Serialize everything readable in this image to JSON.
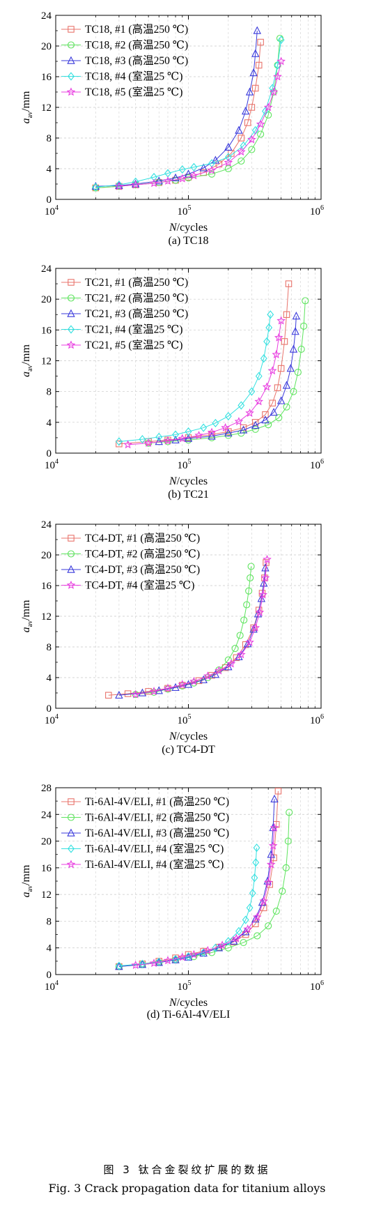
{
  "figure_caption_cn": "图 3  钛合金裂纹扩展的数据",
  "figure_caption_en": "Fig. 3   Crack propagation data for titanium alloys",
  "chart_data": [
    {
      "type": "line",
      "subtitle": "(a) TC18",
      "xlabel": "N/cycles",
      "ylabel": "a_av/mm",
      "x_scale": "log",
      "xlim": [
        10000,
        1000000
      ],
      "ylim": [
        0,
        24
      ],
      "yticks": [
        0,
        4,
        8,
        12,
        16,
        20,
        24
      ],
      "xticks": [
        "10^4",
        "10^5",
        "10^6"
      ],
      "grid": true,
      "legend_position": "top-left",
      "series": [
        {
          "name": "TC18, #1 (高温250 ℃)",
          "color": "#e8736b",
          "marker": "square",
          "x": [
            20000,
            30000,
            40000,
            60000,
            80000,
            100000,
            130000,
            170000,
            210000,
            250000,
            280000,
            300000,
            320000,
            340000,
            350000
          ],
          "y": [
            1.5,
            1.7,
            1.9,
            2.2,
            2.5,
            2.9,
            3.5,
            4.6,
            6.0,
            8.0,
            10.0,
            12.0,
            14.5,
            17.5,
            20.5
          ]
        },
        {
          "name": "TC18, #2 (高温250 ℃)",
          "color": "#5ee45e",
          "marker": "circle",
          "x": [
            20000,
            30000,
            40000,
            60000,
            80000,
            100000,
            150000,
            200000,
            250000,
            300000,
            350000,
            400000,
            440000,
            470000,
            490000
          ],
          "y": [
            1.5,
            1.7,
            1.9,
            2.2,
            2.5,
            2.8,
            3.3,
            4.0,
            5.0,
            6.5,
            8.5,
            11.0,
            14.0,
            17.5,
            21.0
          ]
        },
        {
          "name": "TC18, #3 (高温250 ℃)",
          "color": "#3a3adb",
          "marker": "triangle",
          "x": [
            20000,
            30000,
            40000,
            60000,
            80000,
            100000,
            130000,
            160000,
            200000,
            240000,
            270000,
            290000,
            310000,
            320000,
            330000
          ],
          "y": [
            1.7,
            1.8,
            2.0,
            2.4,
            2.8,
            3.3,
            4.1,
            5.1,
            6.8,
            9.0,
            11.5,
            14.0,
            16.5,
            19.0,
            22.0
          ]
        },
        {
          "name": "TC18, #4 (室温25 ℃)",
          "color": "#33e0e0",
          "marker": "diamond",
          "x": [
            20000,
            30000,
            40000,
            55000,
            70000,
            90000,
            110000,
            150000,
            200000,
            260000,
            320000,
            380000,
            430000,
            470000,
            500000
          ],
          "y": [
            1.6,
            1.9,
            2.3,
            2.9,
            3.4,
            3.9,
            4.2,
            4.7,
            5.5,
            7.0,
            9.0,
            11.5,
            14.5,
            17.5,
            20.8
          ]
        },
        {
          "name": "TC18, #5 (室温25 ℃)",
          "color": "#e83ee0",
          "marker": "star",
          "x": [
            30000,
            40000,
            55000,
            70000,
            90000,
            110000,
            150000,
            200000,
            250000,
            300000,
            350000,
            400000,
            440000,
            470000,
            500000
          ],
          "y": [
            1.7,
            1.9,
            2.1,
            2.4,
            2.7,
            3.1,
            3.8,
            4.8,
            6.2,
            7.8,
            9.8,
            12.0,
            14.0,
            16.0,
            18.0
          ]
        }
      ]
    },
    {
      "type": "line",
      "subtitle": "(b) TC21",
      "xlabel": "N/cycles",
      "ylabel": "a_av/mm",
      "x_scale": "log",
      "xlim": [
        10000,
        1000000
      ],
      "ylim": [
        0,
        24
      ],
      "yticks": [
        0,
        4,
        8,
        12,
        16,
        20,
        24
      ],
      "xticks": [
        "10^4",
        "10^5",
        "10^6"
      ],
      "grid": true,
      "legend_position": "top-left",
      "series": [
        {
          "name": "TC21, #1 (高温250 ℃)",
          "color": "#e8736b",
          "marker": "square",
          "x": [
            30000,
            50000,
            70000,
            100000,
            150000,
            200000,
            260000,
            320000,
            380000,
            430000,
            470000,
            500000,
            530000,
            550000,
            570000
          ],
          "y": [
            1.2,
            1.5,
            1.7,
            2.0,
            2.4,
            2.8,
            3.3,
            4.0,
            5.0,
            6.5,
            8.5,
            11.0,
            14.5,
            18.0,
            22.0
          ]
        },
        {
          "name": "TC21, #2 (高温250 ℃)",
          "color": "#5ee45e",
          "marker": "circle",
          "x": [
            50000,
            70000,
            100000,
            150000,
            200000,
            250000,
            320000,
            400000,
            480000,
            550000,
            620000,
            670000,
            710000,
            740000,
            760000
          ],
          "y": [
            1.3,
            1.5,
            1.7,
            2.0,
            2.3,
            2.6,
            3.1,
            3.7,
            4.6,
            6.0,
            8.0,
            10.5,
            13.5,
            16.5,
            19.8
          ]
        },
        {
          "name": "TC21, #3 (高温250 ℃)",
          "color": "#3a3adb",
          "marker": "triangle",
          "x": [
            60000,
            80000,
            100000,
            150000,
            200000,
            260000,
            320000,
            380000,
            440000,
            500000,
            550000,
            590000,
            620000,
            640000,
            650000
          ],
          "y": [
            1.5,
            1.7,
            1.9,
            2.2,
            2.6,
            3.0,
            3.6,
            4.3,
            5.3,
            6.8,
            8.8,
            11.0,
            13.5,
            15.8,
            17.8
          ]
        },
        {
          "name": "TC21, #4 (室温25 ℃)",
          "color": "#33e0e0",
          "marker": "diamond",
          "x": [
            30000,
            45000,
            60000,
            80000,
            100000,
            130000,
            160000,
            200000,
            250000,
            300000,
            340000,
            370000,
            390000,
            405000,
            415000
          ],
          "y": [
            1.5,
            1.8,
            2.1,
            2.4,
            2.8,
            3.3,
            3.9,
            4.8,
            6.2,
            8.0,
            10.0,
            12.3,
            14.5,
            16.3,
            18.0
          ]
        },
        {
          "name": "TC21, #5 (室温25 ℃)",
          "color": "#e83ee0",
          "marker": "star",
          "x": [
            35000,
            50000,
            70000,
            90000,
            120000,
            150000,
            190000,
            240000,
            290000,
            340000,
            390000,
            430000,
            460000,
            480000,
            500000
          ],
          "y": [
            1.1,
            1.3,
            1.6,
            1.9,
            2.3,
            2.7,
            3.3,
            4.1,
            5.2,
            6.7,
            8.6,
            10.7,
            12.8,
            15.0,
            17.2
          ]
        }
      ]
    },
    {
      "type": "line",
      "subtitle": "(c) TC4-DT",
      "xlabel": "N/cycles",
      "ylabel": "a_av/mm",
      "x_scale": "log",
      "xlim": [
        10000,
        1000000
      ],
      "ylim": [
        0,
        24
      ],
      "yticks": [
        0,
        4,
        8,
        12,
        16,
        20,
        24
      ],
      "xticks": [
        "10^4",
        "10^5",
        "10^6"
      ],
      "grid": true,
      "legend_position": "top-left",
      "series": [
        {
          "name": "TC4-DT, #1 (高温250 ℃)",
          "color": "#e8736b",
          "marker": "square",
          "x": [
            25000,
            35000,
            50000,
            70000,
            90000,
            120000,
            150000,
            190000,
            230000,
            270000,
            310000,
            340000,
            360000,
            375000,
            385000
          ],
          "y": [
            1.7,
            1.9,
            2.2,
            2.6,
            3.0,
            3.6,
            4.3,
            5.3,
            6.6,
            8.3,
            10.5,
            12.8,
            15.0,
            17.0,
            19.0
          ]
        },
        {
          "name": "TC4-DT, #2 (高温250 ℃)",
          "color": "#5ee45e",
          "marker": "circle",
          "x": [
            40000,
            55000,
            70000,
            90000,
            110000,
            140000,
            170000,
            200000,
            225000,
            245000,
            262000,
            275000,
            285000,
            292000,
            297000
          ],
          "y": [
            1.8,
            2.1,
            2.5,
            2.9,
            3.3,
            4.0,
            5.0,
            6.3,
            7.8,
            9.5,
            11.5,
            13.5,
            15.3,
            17.0,
            18.5
          ]
        },
        {
          "name": "TC4-DT, #3 (高温250 ℃)",
          "color": "#3a3adb",
          "marker": "triangle",
          "x": [
            30000,
            45000,
            60000,
            80000,
            100000,
            130000,
            160000,
            200000,
            240000,
            280000,
            310000,
            335000,
            355000,
            370000,
            380000
          ],
          "y": [
            1.7,
            2.0,
            2.3,
            2.7,
            3.1,
            3.7,
            4.4,
            5.4,
            6.7,
            8.4,
            10.3,
            12.3,
            14.3,
            16.3,
            18.3
          ]
        },
        {
          "name": "TC4-DT, #4 (室温25 ℃)",
          "color": "#e83ee0",
          "marker": "star",
          "x": [
            40000,
            55000,
            70000,
            90000,
            110000,
            140000,
            170000,
            210000,
            250000,
            290000,
            320000,
            345000,
            365000,
            380000,
            392000
          ],
          "y": [
            1.8,
            2.2,
            2.6,
            3.1,
            3.5,
            4.2,
            4.9,
            5.8,
            7.0,
            8.6,
            10.5,
            12.5,
            14.8,
            17.0,
            19.4
          ]
        }
      ]
    },
    {
      "type": "line",
      "subtitle": "(d) Ti-6Al-4V/ELI",
      "xlabel": "N/cycles",
      "ylabel": "a_av/mm",
      "x_scale": "log",
      "xlim": [
        10000,
        1000000
      ],
      "ylim": [
        0,
        28
      ],
      "yticks": [
        0,
        4,
        8,
        12,
        16,
        20,
        24,
        28
      ],
      "xticks": [
        "10^4",
        "10^5",
        "10^6"
      ],
      "grid": true,
      "legend_position": "top-left",
      "series": [
        {
          "name": "Ti-6Al-4V/ELI, #1 (高温250 ℃)",
          "color": "#e8736b",
          "marker": "square",
          "x": [
            30000,
            45000,
            60000,
            80000,
            100000,
            130000,
            170000,
            220000,
            270000,
            320000,
            370000,
            410000,
            440000,
            460000,
            475000
          ],
          "y": [
            1.2,
            1.6,
            2.0,
            2.5,
            3.0,
            3.5,
            4.1,
            4.9,
            6.0,
            7.6,
            10.0,
            13.5,
            17.5,
            22.5,
            27.5
          ]
        },
        {
          "name": "Ti-6Al-4V/ELI, #2 (高温250 ℃)",
          "color": "#5ee45e",
          "marker": "circle",
          "x": [
            30000,
            45000,
            60000,
            80000,
            110000,
            150000,
            200000,
            260000,
            330000,
            400000,
            460000,
            510000,
            545000,
            565000,
            575000
          ],
          "y": [
            1.2,
            1.5,
            1.8,
            2.2,
            2.7,
            3.3,
            4.0,
            4.8,
            5.8,
            7.3,
            9.5,
            12.5,
            16.0,
            20.0,
            24.3
          ]
        },
        {
          "name": "Ti-6Al-4V/ELI, #3 (高温250 ℃)",
          "color": "#3a3adb",
          "marker": "triangle",
          "x": [
            30000,
            45000,
            60000,
            80000,
            100000,
            130000,
            170000,
            220000,
            270000,
            320000,
            360000,
            395000,
            420000,
            435000,
            445000
          ],
          "y": [
            1.2,
            1.5,
            1.8,
            2.2,
            2.6,
            3.2,
            4.0,
            5.0,
            6.4,
            8.3,
            10.8,
            14.0,
            18.0,
            22.0,
            26.3
          ]
        },
        {
          "name": "Ti-6Al-4V/ELI, #4 (室温25 ℃)",
          "color": "#33e0e0",
          "marker": "diamond",
          "x": [
            30000,
            45000,
            60000,
            80000,
            100000,
            130000,
            160000,
            200000,
            240000,
            270000,
            290000,
            305000,
            315000,
            322000,
            327000
          ],
          "y": [
            1.3,
            1.6,
            1.9,
            2.3,
            2.7,
            3.3,
            4.0,
            5.0,
            6.5,
            8.2,
            10.0,
            12.2,
            14.5,
            16.8,
            19.0
          ]
        },
        {
          "name": "Ti-6Al-4V/ELI, #4 (室温25 ℃)",
          "color": "#e83ee0",
          "marker": "star",
          "x": [
            40000,
            55000,
            70000,
            90000,
            110000,
            140000,
            180000,
            230000,
            280000,
            330000,
            370000,
            400000,
            420000,
            435000,
            445000
          ],
          "y": [
            1.4,
            1.7,
            2.1,
            2.6,
            3.0,
            3.6,
            4.4,
            5.4,
            6.8,
            8.6,
            11.0,
            13.8,
            16.5,
            19.3,
            22.0
          ]
        }
      ]
    }
  ]
}
